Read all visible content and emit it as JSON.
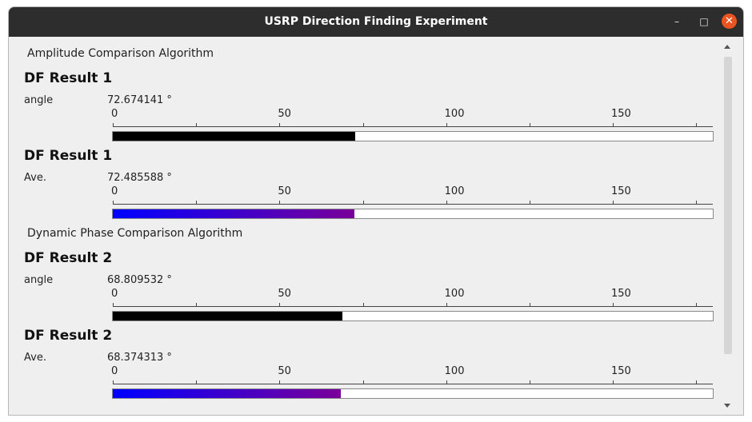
{
  "window": {
    "title": "USRP Direction Finding Experiment",
    "minimize_icon": "minimize-icon",
    "maximize_icon": "maximize-icon",
    "close_icon": "close-icon",
    "minimize_glyph": "–",
    "maximize_glyph": "□",
    "close_glyph": "✕"
  },
  "sections": [
    {
      "label": "Amplitude Comparison Algorithm",
      "blocks": [
        {
          "title": "DF Result 1",
          "row_label": "angle",
          "value_text": "72.674141 °",
          "value": 72.674141,
          "bar_color": "#000000"
        },
        {
          "title": "DF Result 1",
          "row_label": "Ave.",
          "value_text": "72.485588 °",
          "value": 72.485588,
          "bar_gradient": [
            "#0000ff",
            "#7a0099"
          ]
        }
      ]
    },
    {
      "label": "Dynamic Phase Comparison Algorithm",
      "blocks": [
        {
          "title": "DF Result 2",
          "row_label": "angle",
          "value_text": "68.809532 °",
          "value": 68.809532,
          "bar_color": "#000000"
        },
        {
          "title": "DF Result 2",
          "row_label": "Ave.",
          "value_text": "68.374313 °",
          "value": 68.374313,
          "bar_gradient": [
            "#0000ff",
            "#7a0099"
          ]
        }
      ]
    }
  ],
  "scale": {
    "min": 0,
    "max": 180,
    "labels": [
      "0",
      "50",
      "100",
      "150"
    ],
    "label_values": [
      0,
      50,
      100,
      150
    ],
    "minor_ticks": [
      0,
      25,
      50,
      75,
      100,
      125,
      150,
      175
    ]
  }
}
